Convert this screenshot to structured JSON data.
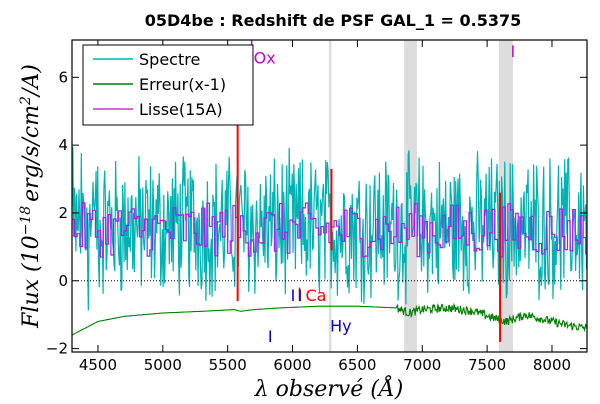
{
  "chart_data": {
    "type": "line",
    "title": "05D4be : Redshift de PSF GAL_1 = 0.5375",
    "xlabel": "λ observé (Å)",
    "ylabel": "Flux (10^-18 erg/s/cm²/A)",
    "ylabel_parts": {
      "main": "Flux (10",
      "exp": "−18",
      "rest": "erg/s/cm",
      "sq": "2",
      "tail": "/A)"
    },
    "xlim": [
      4300,
      8270
    ],
    "ylim": [
      -2.1,
      7.1
    ],
    "xticks": [
      4500,
      5000,
      5500,
      6000,
      6500,
      7000,
      7500,
      8000
    ],
    "yticks": [
      -2,
      0,
      2,
      4,
      6
    ],
    "grid": false,
    "legend_position": "upper-left",
    "series": [
      {
        "name": "Spectre",
        "color": "#00b3b3",
        "mean": 1.6,
        "noise": 1.0
      },
      {
        "name": "Erreur(x-1)",
        "color": "#008000",
        "x": [
          4300,
          4400,
          4500,
          4700,
          5000,
          5300,
          5550,
          5600,
          5700,
          5900,
          6200,
          6500,
          6800,
          6900,
          7000,
          7200,
          7400,
          7550,
          7650,
          7800,
          8000,
          8100,
          8270
        ],
        "y": [
          -1.6,
          -1.4,
          -1.2,
          -1.05,
          -0.95,
          -0.9,
          -0.85,
          -0.9,
          -0.85,
          -0.8,
          -0.75,
          -0.75,
          -0.8,
          -0.95,
          -0.85,
          -0.8,
          -0.9,
          -1.1,
          -1.2,
          -1.0,
          -1.2,
          -1.3,
          -1.4
        ]
      },
      {
        "name": "Lisse(15A)",
        "color": "#a020f0",
        "mean": 1.5,
        "step": 20
      }
    ],
    "bands": [
      {
        "x0": 6280,
        "x1": 6300
      },
      {
        "x0": 6860,
        "x1": 6960
      },
      {
        "x0": 7590,
        "x1": 7700
      }
    ],
    "sky_lines": [
      {
        "x": 5577,
        "y0": -0.6,
        "y1": 4.8
      },
      {
        "x": 6300,
        "y0": 0.9,
        "y1": 3.3
      },
      {
        "x": 7600,
        "y0": -1.8,
        "y1": 2.6
      }
    ],
    "annotations": [
      {
        "text": "Ox",
        "x": 5700,
        "y": 6.4,
        "color": "#cc00cc",
        "tick_from": 6.6,
        "tick_to": 7.1
      },
      {
        "text": "Ca",
        "x": 6100,
        "y": -0.6,
        "color": "#ff0000",
        "tick_from": -0.2,
        "tick_to": -0.6
      },
      {
        "text": "Hy",
        "x": 6290,
        "y": -1.5,
        "color": "#0000cc"
      },
      {
        "text": "I",
        "x": 5985,
        "y": -0.6,
        "color": "#0000cc"
      },
      {
        "text": "I",
        "x": 6040,
        "y": -0.6,
        "color": "#0000cc"
      },
      {
        "text": "I",
        "x": 5810,
        "y": -1.8,
        "color": "#0000cc"
      },
      {
        "text": "I",
        "x": 7680,
        "y": 6.6,
        "color": "#cc00cc"
      }
    ],
    "zero_line": 0
  }
}
